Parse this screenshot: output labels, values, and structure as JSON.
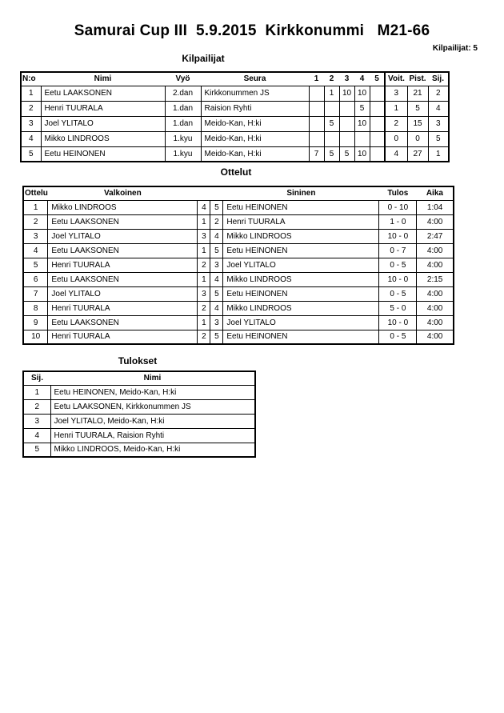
{
  "page": {
    "title": "Samurai Cup III  5.9.2015  Kirkkonummi   M21-66",
    "competitors_count_label": "Kilpailijat: 5"
  },
  "competitors": {
    "section_title": "Kilpailijat",
    "headers": {
      "no": "N:o",
      "name": "Nimi",
      "belt": "Vyö",
      "club": "Seura",
      "rounds": [
        "1",
        "2",
        "3",
        "4",
        "5"
      ],
      "wins": "Voit.",
      "points": "Pist.",
      "place": "Sij."
    },
    "rows": [
      {
        "no": "1",
        "name": "Eetu LAAKSONEN",
        "belt": "2.dan",
        "club": "Kirkkonummen JS",
        "scores": [
          "",
          "1",
          "10",
          "10",
          ""
        ],
        "wins": "3",
        "points": "21",
        "place": "2"
      },
      {
        "no": "2",
        "name": "Henri TUURALA",
        "belt": "1.dan",
        "club": "Raision Ryhti",
        "scores": [
          "",
          "",
          "",
          "5",
          ""
        ],
        "wins": "1",
        "points": "5",
        "place": "4"
      },
      {
        "no": "3",
        "name": "Joel YLITALO",
        "belt": "1.dan",
        "club": "Meido-Kan, H:ki",
        "scores": [
          "",
          "5",
          "",
          "10",
          ""
        ],
        "wins": "2",
        "points": "15",
        "place": "3"
      },
      {
        "no": "4",
        "name": "Mikko LINDROOS",
        "belt": "1.kyu",
        "club": "Meido-Kan, H:ki",
        "scores": [
          "",
          "",
          "",
          "",
          ""
        ],
        "wins": "0",
        "points": "0",
        "place": "5"
      },
      {
        "no": "5",
        "name": "Eetu HEINONEN",
        "belt": "1.kyu",
        "club": "Meido-Kan, H:ki",
        "scores": [
          "7",
          "5",
          "5",
          "10",
          ""
        ],
        "wins": "4",
        "points": "27",
        "place": "1"
      }
    ]
  },
  "matches": {
    "section_title": "Ottelut",
    "headers": {
      "match": "Ottelu",
      "white": "Valkoinen",
      "blue": "Sininen",
      "result": "Tulos",
      "time": "Aika"
    },
    "rows": [
      {
        "no": "1",
        "white": "Mikko LINDROOS",
        "white_no": "4",
        "blue_no": "5",
        "blue": "Eetu HEINONEN",
        "result": "0 - 10",
        "time": "1:04"
      },
      {
        "no": "2",
        "white": "Eetu LAAKSONEN",
        "white_no": "1",
        "blue_no": "2",
        "blue": "Henri TUURALA",
        "result": "1 - 0",
        "time": "4:00"
      },
      {
        "no": "3",
        "white": "Joel YLITALO",
        "white_no": "3",
        "blue_no": "4",
        "blue": "Mikko LINDROOS",
        "result": "10 - 0",
        "time": "2:47"
      },
      {
        "no": "4",
        "white": "Eetu LAAKSONEN",
        "white_no": "1",
        "blue_no": "5",
        "blue": "Eetu HEINONEN",
        "result": "0 - 7",
        "time": "4:00"
      },
      {
        "no": "5",
        "white": "Henri TUURALA",
        "white_no": "2",
        "blue_no": "3",
        "blue": "Joel YLITALO",
        "result": "0 - 5",
        "time": "4:00"
      },
      {
        "no": "6",
        "white": "Eetu LAAKSONEN",
        "white_no": "1",
        "blue_no": "4",
        "blue": "Mikko LINDROOS",
        "result": "10 - 0",
        "time": "2:15"
      },
      {
        "no": "7",
        "white": "Joel YLITALO",
        "white_no": "3",
        "blue_no": "5",
        "blue": "Eetu HEINONEN",
        "result": "0 - 5",
        "time": "4:00"
      },
      {
        "no": "8",
        "white": "Henri TUURALA",
        "white_no": "2",
        "blue_no": "4",
        "blue": "Mikko LINDROOS",
        "result": "5 - 0",
        "time": "4:00"
      },
      {
        "no": "9",
        "white": "Eetu LAAKSONEN",
        "white_no": "1",
        "blue_no": "3",
        "blue": "Joel YLITALO",
        "result": "10 - 0",
        "time": "4:00"
      },
      {
        "no": "10",
        "white": "Henri TUURALA",
        "white_no": "2",
        "blue_no": "5",
        "blue": "Eetu HEINONEN",
        "result": "0 - 5",
        "time": "4:00"
      }
    ]
  },
  "results": {
    "section_title": "Tulokset",
    "headers": {
      "place": "Sij.",
      "name": "Nimi"
    },
    "rows": [
      {
        "place": "1",
        "name": "Eetu HEINONEN, Meido-Kan, H:ki"
      },
      {
        "place": "2",
        "name": "Eetu LAAKSONEN, Kirkkonummen JS"
      },
      {
        "place": "3",
        "name": "Joel YLITALO, Meido-Kan, H:ki"
      },
      {
        "place": "4",
        "name": "Henri TUURALA, Raision Ryhti"
      },
      {
        "place": "5",
        "name": "Mikko LINDROOS, Meido-Kan, H:ki"
      }
    ]
  }
}
